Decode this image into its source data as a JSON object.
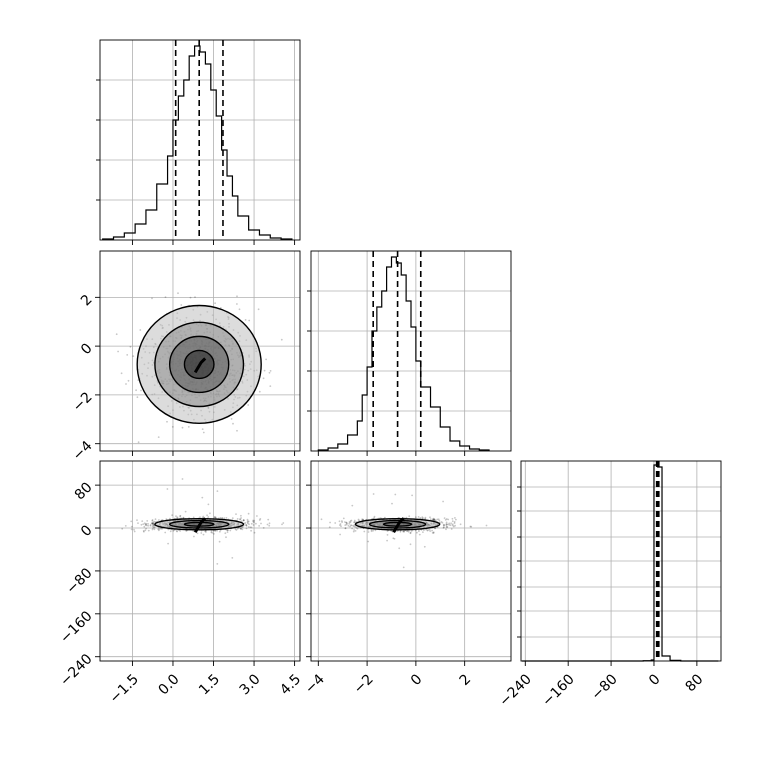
{
  "chart_data": {
    "type": "corner",
    "grid": true,
    "parameters": [
      {
        "range": [
          -2.7,
          4.7
        ],
        "ticks": [
          -1.5,
          0.0,
          1.5,
          3.0,
          4.5
        ],
        "tick_labels": [
          "−1.5",
          "0.0",
          "1.5",
          "3.0",
          "4.5"
        ]
      },
      {
        "range": [
          -4.3,
          3.9
        ],
        "ticks": [
          -4,
          -2,
          0,
          2
        ],
        "tick_labels": [
          "−4",
          "−2",
          "0",
          "2"
        ]
      },
      {
        "range": [
          -248,
          125
        ],
        "ticks": [
          -240,
          -160,
          -80,
          0,
          80
        ],
        "tick_labels": [
          "−240",
          "−160",
          "−80",
          "0",
          "80"
        ]
      }
    ],
    "histograms": [
      {
        "bin_edges": [
          -2.6,
          -2.2,
          -1.8,
          -1.4,
          -1.0,
          -0.6,
          -0.2,
          0.0,
          0.2,
          0.4,
          0.6,
          0.8,
          1.0,
          1.2,
          1.4,
          1.6,
          1.8,
          2.0,
          2.2,
          2.4,
          2.8,
          3.2,
          3.6,
          4.0,
          4.4
        ],
        "counts": [
          0.5,
          1.5,
          3.5,
          8,
          15,
          28,
          42,
          60,
          72,
          80,
          92,
          97,
          94,
          88,
          75,
          62,
          45,
          32,
          22,
          12,
          5,
          2.5,
          1,
          0.5
        ],
        "quantiles": [
          0.1,
          0.97,
          1.85
        ],
        "ylim": [
          0,
          100
        ],
        "yticks": [
          20,
          40,
          60,
          80
        ]
      },
      {
        "bin_edges": [
          -4.0,
          -3.6,
          -3.2,
          -2.8,
          -2.4,
          -2.2,
          -2.0,
          -1.8,
          -1.6,
          -1.4,
          -1.2,
          -1.0,
          -0.8,
          -0.6,
          -0.4,
          -0.2,
          0.0,
          0.2,
          0.6,
          1.0,
          1.4,
          1.8,
          2.2,
          2.6,
          3.0
        ],
        "counts": [
          0.5,
          1.5,
          3.5,
          8,
          15,
          28,
          42,
          60,
          72,
          80,
          92,
          97,
          94,
          88,
          75,
          62,
          45,
          32,
          22,
          12,
          5,
          2.5,
          1,
          0.5
        ],
        "quantiles": [
          -1.75,
          -0.75,
          0.2
        ],
        "ylim": [
          0,
          100
        ],
        "yticks": [
          20,
          40,
          60,
          80
        ]
      },
      {
        "bin_edges": [
          -246,
          -220,
          -200,
          -180,
          -160,
          -140,
          -120,
          -100,
          -80,
          -60,
          -40,
          -20,
          -5,
          0,
          7,
          15,
          30,
          50,
          80,
          120
        ],
        "counts": [
          0,
          0,
          0,
          0,
          0,
          0,
          0,
          0,
          0,
          0,
          0,
          0.15,
          0.5,
          98,
          97,
          2.5,
          0.3,
          0,
          0
        ],
        "quantiles": [
          5,
          7,
          9
        ],
        "ylim": [
          0,
          100
        ],
        "yticks": [
          12,
          25,
          37,
          50,
          62,
          75,
          87
        ]
      }
    ],
    "panels_2d": [
      {
        "x": 0,
        "y": 1,
        "center": [
          0.97,
          -0.75
        ],
        "spread": [
          0.95,
          1.0
        ],
        "contour_radii": [
          1.0,
          2.0,
          3.0,
          4.2
        ]
      },
      {
        "x": 0,
        "y": 2,
        "center": [
          0.97,
          7
        ],
        "spread": [
          0.95,
          6
        ],
        "contour_radii": [
          1.0,
          2.0,
          3.0
        ]
      },
      {
        "x": 1,
        "y": 2,
        "center": [
          -0.75,
          7
        ],
        "spread": [
          1.0,
          6
        ],
        "contour_radii": [
          1.0,
          2.0,
          3.0
        ]
      }
    ]
  }
}
